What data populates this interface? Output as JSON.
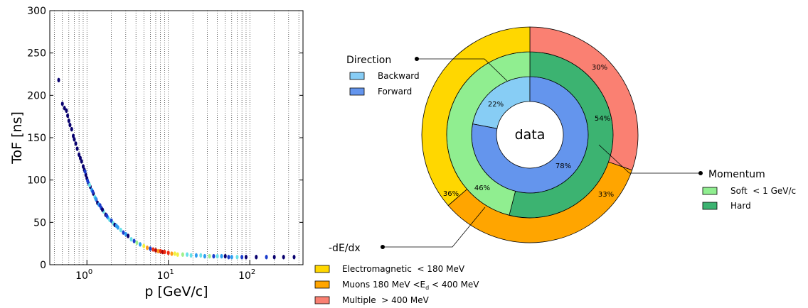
{
  "chart_data": [
    {
      "type": "scatter",
      "xlabel": "p [GeV/c]",
      "ylabel": "ToF [ns]",
      "xscale": "log",
      "xlim": [
        0.35,
        450
      ],
      "ylim": [
        0,
        300
      ],
      "grid": "x-minor-dotted",
      "xticks": [
        {
          "value": 1,
          "label": "10",
          "exp": "0"
        },
        {
          "value": 10,
          "label": "10",
          "exp": "1"
        },
        {
          "value": 100,
          "label": "10",
          "exp": "2"
        }
      ],
      "yticks": [
        0,
        50,
        100,
        150,
        200,
        250,
        300
      ],
      "colormap": [
        "#08006e",
        "#1a3ccc",
        "#2c9cf0",
        "#67e0e8",
        "#9ff08a",
        "#f2f040",
        "#ff9a18",
        "#ee2a10",
        "#b00808"
      ],
      "points": [
        [
          0.45,
          218,
          0
        ],
        [
          0.5,
          190,
          0
        ],
        [
          0.53,
          185,
          0
        ],
        [
          0.56,
          182,
          0
        ],
        [
          0.58,
          176,
          0
        ],
        [
          0.6,
          170,
          0
        ],
        [
          0.62,
          165,
          0
        ],
        [
          0.65,
          160,
          0
        ],
        [
          0.68,
          152,
          0
        ],
        [
          0.7,
          148,
          0
        ],
        [
          0.73,
          143,
          0
        ],
        [
          0.76,
          137,
          0
        ],
        [
          0.8,
          130,
          0
        ],
        [
          0.83,
          126,
          0
        ],
        [
          0.86,
          122,
          0
        ],
        [
          0.9,
          116,
          0
        ],
        [
          0.93,
          112,
          0
        ],
        [
          0.97,
          106,
          0
        ],
        [
          1.0,
          102,
          0
        ],
        [
          1.02,
          99,
          1
        ],
        [
          1.05,
          96,
          1
        ],
        [
          1.1,
          92,
          0
        ],
        [
          1.15,
          88,
          2
        ],
        [
          1.2,
          84,
          0
        ],
        [
          1.25,
          80,
          3
        ],
        [
          1.3,
          77,
          1
        ],
        [
          1.35,
          73,
          0
        ],
        [
          1.4,
          71,
          2
        ],
        [
          1.5,
          67,
          1
        ],
        [
          1.6,
          63,
          3
        ],
        [
          1.7,
          59,
          0
        ],
        [
          1.8,
          56,
          2
        ],
        [
          1.9,
          53,
          3
        ],
        [
          2.0,
          52,
          1
        ],
        [
          2.1,
          49,
          3
        ],
        [
          2.2,
          47,
          0
        ],
        [
          2.4,
          44,
          2
        ],
        [
          2.6,
          41,
          3
        ],
        [
          2.8,
          38,
          1
        ],
        [
          3.0,
          36,
          2
        ],
        [
          3.2,
          34,
          0
        ],
        [
          3.5,
          30,
          3
        ],
        [
          3.8,
          28,
          1
        ],
        [
          4.1,
          26,
          4
        ],
        [
          4.5,
          24,
          2
        ],
        [
          5.0,
          22,
          5
        ],
        [
          5.5,
          20,
          6
        ],
        [
          6.0,
          19,
          1
        ],
        [
          6.5,
          18,
          7
        ],
        [
          7.0,
          17,
          8
        ],
        [
          7.5,
          16,
          6
        ],
        [
          8.0,
          16,
          7
        ],
        [
          8.5,
          15,
          8
        ],
        [
          9.0,
          15,
          7
        ],
        [
          10,
          14,
          7
        ],
        [
          11,
          13,
          6
        ],
        [
          12,
          13,
          5
        ],
        [
          13,
          12,
          5
        ],
        [
          15,
          12,
          4
        ],
        [
          17,
          12,
          3
        ],
        [
          19,
          11,
          3
        ],
        [
          22,
          11,
          2
        ],
        [
          25,
          11,
          3
        ],
        [
          28,
          10,
          2
        ],
        [
          32,
          10,
          4
        ],
        [
          36,
          10,
          1
        ],
        [
          40,
          10,
          3
        ],
        [
          45,
          10,
          2
        ],
        [
          50,
          10,
          0
        ],
        [
          55,
          9,
          1
        ],
        [
          60,
          9,
          2
        ],
        [
          70,
          9,
          3
        ],
        [
          80,
          9,
          1
        ],
        [
          90,
          9,
          0
        ],
        [
          120,
          9,
          0
        ],
        [
          160,
          9,
          1
        ],
        [
          200,
          9,
          0
        ],
        [
          260,
          9,
          0
        ],
        [
          350,
          9,
          0
        ],
        [
          0.95,
          110,
          1
        ],
        [
          1.08,
          94,
          3
        ],
        [
          1.18,
          86,
          1
        ],
        [
          1.28,
          78,
          2
        ],
        [
          1.45,
          70,
          1
        ],
        [
          1.55,
          65,
          0
        ],
        [
          1.75,
          58,
          1
        ],
        [
          2.3,
          46,
          2
        ]
      ]
    },
    {
      "type": "pie",
      "center_label": "data",
      "rings": [
        {
          "name": "Direction",
          "slices": [
            {
              "label": "Backward",
              "percent": 22,
              "color": "#87cdf5"
            },
            {
              "label": "Forward",
              "percent": 78,
              "color": "#6495ed"
            }
          ]
        },
        {
          "name": "Momentum",
          "slices": [
            {
              "label": "Hard",
              "percent": 54,
              "color": "#3cb371"
            },
            {
              "label": "Soft < 1 GeV/c",
              "percent": 46,
              "color": "#90ee90"
            }
          ]
        },
        {
          "name": "-dE/dx",
          "slices": [
            {
              "label": "Multiple > 400 MeV",
              "percent": 30,
              "color": "#fa8072"
            },
            {
              "label": "Muons 180 MeV < Ed < 400 MeV",
              "percent": 33,
              "color": "#ffa500"
            },
            {
              "label": "Electromagnetic < 180 MeV",
              "percent": 36,
              "color": "#ffd700"
            }
          ]
        }
      ]
    }
  ],
  "legends": {
    "direction": {
      "title": "Direction",
      "items": [
        {
          "label": "Backward",
          "color": "#87cdf5"
        },
        {
          "label": "Forward",
          "color": "#6495ed"
        }
      ]
    },
    "momentum": {
      "title": "Momentum",
      "items": [
        {
          "label": "Soft  < 1 GeV/c",
          "color": "#90ee90"
        },
        {
          "label": "Hard",
          "color": "#3cb371"
        }
      ]
    },
    "dedx": {
      "title": "-dE/dx",
      "items": [
        {
          "label": "Electromagnetic  < 180 MeV",
          "color": "#ffd700"
        },
        {
          "label_pre": "Muons 180 MeV <E",
          "label_sub": "d",
          "label_post": " < 400 MeV",
          "color": "#ffa500"
        },
        {
          "label": "Multiple  > 400 MeV",
          "color": "#fa8072"
        }
      ]
    }
  },
  "slice_labels": {
    "backward": "22%",
    "forward": "78%",
    "hard": "54%",
    "soft": "46%",
    "multiple": "30%",
    "muons": "33%",
    "electromagnetic": "36%"
  }
}
